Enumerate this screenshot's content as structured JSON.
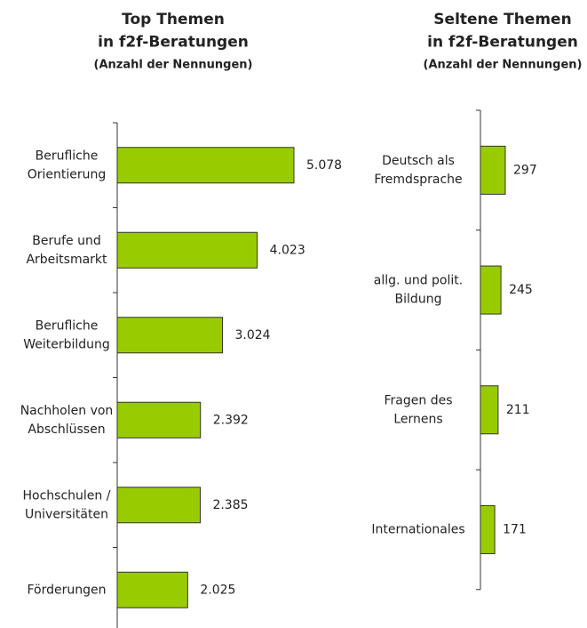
{
  "chart_data": [
    {
      "type": "barh",
      "title": [
        "Top Themen",
        "in f2f-Beratungen",
        "(Anzahl der Nennungen)"
      ],
      "categories": [
        "Berufliche\nOrientierung",
        "Berufe und\nArbeitsmarkt",
        "Berufliche\nWeiterbildung",
        "Nachholen von\nAbschlüssen",
        "Hochschulen /\nUniversitäten",
        "Förderungen"
      ],
      "values": [
        5078,
        4023,
        3024,
        2392,
        2385,
        2025
      ],
      "value_labels": [
        "5.078",
        "4.023",
        "3.024",
        "2.392",
        "2.385",
        "2.025"
      ],
      "color": "#99cc00"
    },
    {
      "type": "barh",
      "title": [
        "Seltene Themen",
        "in f2f-Beratungen",
        "(Anzahl der Nennungen)"
      ],
      "categories": [
        "Deutsch als\nFremdsprache",
        "allg. und polit.\nBildung",
        "Fragen des\nLernens",
        "Internationales"
      ],
      "values": [
        297,
        245,
        211,
        171
      ],
      "value_labels": [
        "297",
        "245",
        "211",
        "171"
      ],
      "color": "#99cc00"
    }
  ]
}
